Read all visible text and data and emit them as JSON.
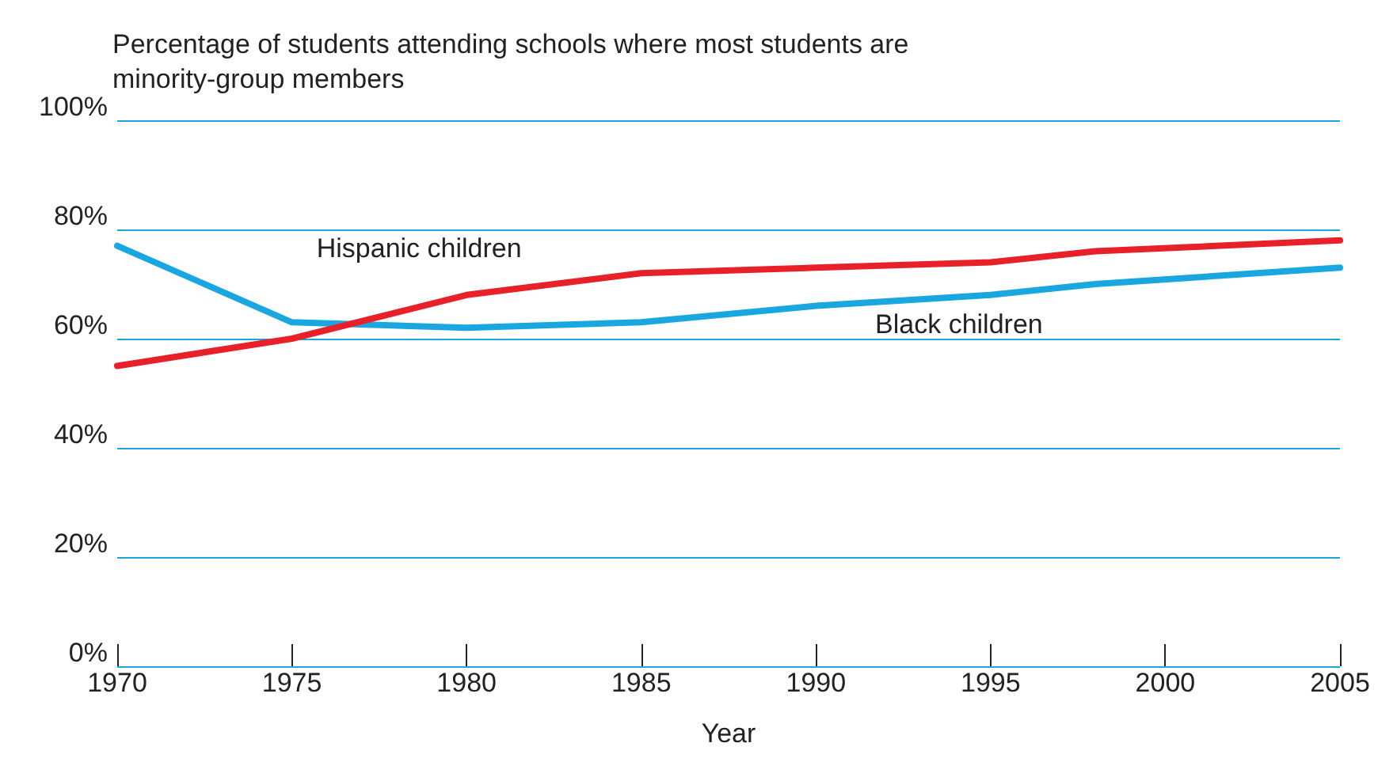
{
  "chart_data": {
    "type": "line",
    "title": "Percentage of students attending schools where most students are minority-group members",
    "xlabel": "Year",
    "xlim": [
      1970,
      2005
    ],
    "xticks": [
      1970,
      1975,
      1980,
      1985,
      1990,
      1995,
      2000,
      2005
    ],
    "ylim": [
      0,
      100
    ],
    "yticks": [
      {
        "value": 0,
        "label": "0%"
      },
      {
        "value": 20,
        "label": "20%"
      },
      {
        "value": 40,
        "label": "40%"
      },
      {
        "value": 60,
        "label": "60%"
      },
      {
        "value": 80,
        "label": "80%"
      },
      {
        "value": 100,
        "label": "100%"
      }
    ],
    "grid": "y",
    "legend": false,
    "marker": "none",
    "line_style": "solid",
    "series": [
      {
        "name": "Black children",
        "color": "#1aa7e0",
        "x": [
          1970,
          1975,
          1980,
          1985,
          1990,
          1995,
          1998,
          2005
        ],
        "values": [
          77,
          63,
          62,
          63,
          66,
          68,
          70,
          73
        ]
      },
      {
        "name": "Hispanic children",
        "color": "#e8202a",
        "x": [
          1970,
          1975,
          1980,
          1985,
          1990,
          1995,
          1998,
          2005
        ],
        "values": [
          55,
          60,
          68,
          72,
          73,
          74,
          76,
          78
        ]
      }
    ]
  }
}
